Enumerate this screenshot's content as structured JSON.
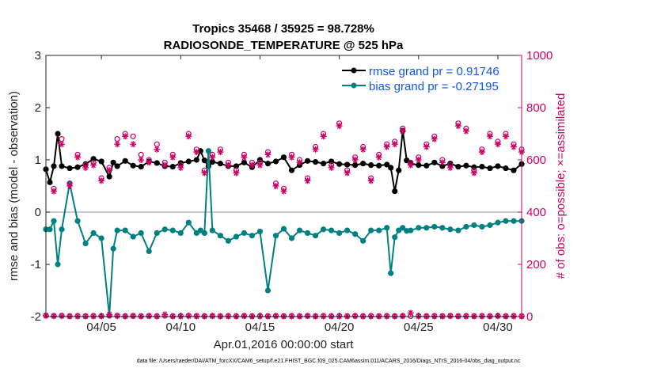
{
  "colors": {
    "rmse": "#000000",
    "bias": "#008080",
    "obs": "#cc0066",
    "legend_text": "#1155ee",
    "zero_line": "#aaaaaa"
  },
  "titles": {
    "line1": "Tropics 35468 / 35925 = 98.728%",
    "line2": "RADIOSONDE_TEMPERATURE @ 525 hPa"
  },
  "footer": "data file: /Users/raeder/DAI/ATM_forcXX/CAM6_setup/f.e21.FHIST_BGC.f09_025.CAM6assim.011/ACARS_2016/Diags_NTrS_2016-04/obs_diag_output.nc",
  "chart_data": {
    "type": "line",
    "title": "Tropics 35468 / 35925 = 98.728% — RADIOSONDE_TEMPERATURE @ 525 hPa",
    "xlabel": "Apr.01,2016 00:00:00 start",
    "ylabel_left": "rmse and bias (model - observation)",
    "ylabel_right": "# of obs: o=possible; ×=assimilated",
    "xlim": [
      0.5,
      30.5
    ],
    "ylim_left": [
      -2,
      3
    ],
    "ylim_right": [
      0,
      1000
    ],
    "xticks": [
      4,
      9,
      14,
      19,
      24,
      29
    ],
    "xticklabels": [
      "04/05",
      "04/10",
      "04/15",
      "04/20",
      "04/25",
      "04/30"
    ],
    "yticks_left": [
      -2,
      -1,
      0,
      1,
      2,
      3
    ],
    "yticks_right": [
      0,
      200,
      400,
      600,
      800,
      1000
    ],
    "legend": [
      {
        "label": "rmse grand pr = 0.91746",
        "series": "rmse"
      },
      {
        "label": "bias grand pr = -0.27195",
        "series": "bias"
      }
    ],
    "series": [
      {
        "name": "rmse",
        "axis": "left",
        "x": [
          0.5,
          0.75,
          1.0,
          1.25,
          1.5,
          2.0,
          2.5,
          3.0,
          3.5,
          4.0,
          4.5,
          4.75,
          5.0,
          5.5,
          6.0,
          6.5,
          7.0,
          7.5,
          8.0,
          8.5,
          9.0,
          9.5,
          10.0,
          10.25,
          10.5,
          10.75,
          11.0,
          11.5,
          12.0,
          12.5,
          13.0,
          13.5,
          14.0,
          14.5,
          15.0,
          15.5,
          16.0,
          16.5,
          17.0,
          17.5,
          18.0,
          18.5,
          19.0,
          19.5,
          20.0,
          20.5,
          21.0,
          21.5,
          22.0,
          22.25,
          22.5,
          22.75,
          23.0,
          23.25,
          23.5,
          24.0,
          24.5,
          25.0,
          25.5,
          26.0,
          26.5,
          27.0,
          27.5,
          28.0,
          28.5,
          29.0,
          29.5,
          30.0,
          30.5
        ],
        "values": [
          0.82,
          0.57,
          0.88,
          1.5,
          0.88,
          0.84,
          0.86,
          0.92,
          1.02,
          0.97,
          0.68,
          0.95,
          0.88,
          0.98,
          0.89,
          0.87,
          0.97,
          0.94,
          0.88,
          0.87,
          0.94,
          0.97,
          1.0,
          1.17,
          0.99,
          0.88,
          0.96,
          0.93,
          0.88,
          0.88,
          0.95,
          0.86,
          1.0,
          0.93,
          0.97,
          1.05,
          0.8,
          0.9,
          0.98,
          0.96,
          0.93,
          0.97,
          0.92,
          0.91,
          0.9,
          0.93,
          0.9,
          0.89,
          0.91,
          0.85,
          0.4,
          0.8,
          1.56,
          0.99,
          0.93,
          0.9,
          0.89,
          0.95,
          0.88,
          0.93,
          0.87,
          0.89,
          0.86,
          0.87,
          0.84,
          0.88,
          0.84,
          0.8,
          0.92
        ]
      },
      {
        "name": "bias",
        "axis": "left",
        "x": [
          0.5,
          0.75,
          1.0,
          1.25,
          1.5,
          2.0,
          2.5,
          3.0,
          3.5,
          4.0,
          4.5,
          4.75,
          5.0,
          5.5,
          6.0,
          6.5,
          7.0,
          7.5,
          8.0,
          8.5,
          9.0,
          9.5,
          10.0,
          10.25,
          10.5,
          10.75,
          11.0,
          11.5,
          12.0,
          12.5,
          13.0,
          13.5,
          14.0,
          14.5,
          15.0,
          15.5,
          16.0,
          16.5,
          17.0,
          17.5,
          18.0,
          18.5,
          19.0,
          19.5,
          20.0,
          20.5,
          21.0,
          21.5,
          22.0,
          22.25,
          22.5,
          22.75,
          23.0,
          23.25,
          23.5,
          24.0,
          24.5,
          25.0,
          25.5,
          26.0,
          26.5,
          27.0,
          27.5,
          28.0,
          28.5,
          29.0,
          29.5,
          30.0,
          30.5
        ],
        "values": [
          -0.33,
          -0.33,
          -0.17,
          -1.0,
          -0.33,
          0.55,
          -0.17,
          -0.6,
          -0.4,
          -0.5,
          -1.98,
          -0.7,
          -0.35,
          -0.35,
          -0.47,
          -0.4,
          -0.75,
          -0.4,
          -0.33,
          -0.35,
          -0.4,
          -0.2,
          -0.4,
          -0.35,
          -0.4,
          1.17,
          -0.35,
          -0.45,
          -0.55,
          -0.47,
          -0.4,
          -0.45,
          -0.37,
          -1.5,
          -0.45,
          -0.32,
          -0.5,
          -0.35,
          -0.4,
          -0.45,
          -0.33,
          -0.35,
          -0.4,
          -0.35,
          -0.42,
          -0.55,
          -0.35,
          -0.35,
          -0.3,
          -1.17,
          -0.48,
          -0.35,
          -0.3,
          -0.36,
          -0.35,
          -0.3,
          -0.3,
          -0.28,
          -0.3,
          -0.33,
          -0.35,
          -0.28,
          -0.25,
          -0.28,
          -0.25,
          -0.2,
          -0.17,
          -0.17,
          -0.17
        ]
      },
      {
        "name": "obs_possible",
        "axis": "right",
        "marker": "circle",
        "x": [
          1.0,
          1.5,
          2.0,
          2.5,
          3.0,
          3.5,
          4.0,
          4.5,
          5.0,
          5.5,
          6.0,
          6.5,
          7.0,
          7.5,
          8.0,
          8.5,
          9.0,
          9.5,
          10.0,
          10.5,
          11.0,
          11.5,
          12.0,
          12.5,
          13.0,
          13.5,
          14.0,
          14.5,
          15.0,
          15.5,
          16.0,
          16.5,
          17.0,
          17.5,
          18.0,
          18.5,
          19.0,
          19.5,
          20.0,
          20.5,
          21.0,
          21.5,
          22.0,
          22.5,
          23.0,
          23.5,
          24.0,
          24.5,
          25.0,
          25.5,
          26.0,
          26.5,
          27.0,
          27.5,
          28.0,
          28.5,
          29.0,
          29.5,
          30.0,
          30.5
        ],
        "values": [
          490,
          680,
          510,
          620,
          580,
          590,
          530,
          570,
          680,
          700,
          690,
          620,
          600,
          660,
          590,
          620,
          580,
          700,
          640,
          560,
          620,
          640,
          590,
          560,
          620,
          590,
          590,
          630,
          510,
          490,
          620,
          600,
          530,
          650,
          700,
          580,
          740,
          560,
          610,
          650,
          530,
          620,
          660,
          670,
          720,
          590,
          610,
          660,
          690,
          600,
          580,
          740,
          720,
          560,
          640,
          700,
          670,
          700,
          660,
          640
        ]
      },
      {
        "name": "obs_assimilated",
        "axis": "right",
        "marker": "asterisk",
        "x": [
          1.0,
          1.5,
          2.0,
          2.5,
          3.0,
          3.5,
          4.0,
          4.5,
          5.0,
          5.5,
          6.0,
          6.5,
          7.0,
          7.5,
          8.0,
          8.5,
          9.0,
          9.5,
          10.0,
          10.5,
          11.0,
          11.5,
          12.0,
          12.5,
          13.0,
          13.5,
          14.0,
          14.5,
          15.0,
          15.5,
          16.0,
          16.5,
          17.0,
          17.5,
          18.0,
          18.5,
          19.0,
          19.5,
          20.0,
          20.5,
          21.0,
          21.5,
          22.0,
          22.5,
          23.0,
          23.5,
          24.0,
          24.5,
          25.0,
          25.5,
          26.0,
          26.5,
          27.0,
          27.5,
          28.0,
          28.5,
          29.0,
          29.5,
          30.0,
          30.5
        ],
        "values": [
          480,
          660,
          500,
          610,
          570,
          580,
          520,
          560,
          660,
          690,
          660,
          600,
          590,
          640,
          580,
          610,
          570,
          690,
          630,
          550,
          610,
          630,
          580,
          550,
          610,
          580,
          580,
          620,
          500,
          480,
          610,
          590,
          520,
          640,
          690,
          570,
          730,
          550,
          600,
          640,
          520,
          610,
          650,
          660,
          710,
          580,
          600,
          650,
          680,
          590,
          570,
          730,
          710,
          550,
          630,
          690,
          660,
          690,
          650,
          630
        ]
      },
      {
        "name": "obs_possible_bottom",
        "axis": "right",
        "marker": "circle",
        "x": [
          0.5,
          1.0,
          1.5,
          2.0,
          2.5,
          3.0,
          3.5,
          4.0,
          4.5,
          5.0,
          5.5,
          6.0,
          6.5,
          7.0,
          7.5,
          8.0,
          8.5,
          9.0,
          9.5,
          10.0,
          10.5,
          11.0,
          11.5,
          12.0,
          12.5,
          13.0,
          13.5,
          14.0,
          14.5,
          15.0,
          15.5,
          16.0,
          16.5,
          17.0,
          17.5,
          18.0,
          18.5,
          19.0,
          19.5,
          20.0,
          20.5,
          21.0,
          21.5,
          22.0,
          22.5,
          23.0,
          23.5,
          24.0,
          24.5,
          25.0,
          25.5,
          26.0,
          26.5,
          27.0,
          27.5,
          28.0,
          28.5,
          29.0,
          29.5,
          30.0,
          30.5
        ],
        "values": [
          5,
          3,
          4,
          2,
          3,
          2,
          3,
          2,
          3,
          4,
          2,
          3,
          2,
          3,
          2,
          3,
          2,
          3,
          4,
          3,
          2,
          3,
          2,
          3,
          2,
          3,
          2,
          3,
          2,
          3,
          2,
          3,
          2,
          3,
          2,
          3,
          2,
          3,
          2,
          3,
          2,
          3,
          2,
          3,
          2,
          3,
          2,
          3,
          2,
          3,
          2,
          3,
          2,
          3,
          2,
          3,
          2,
          3,
          2,
          3,
          2
        ]
      },
      {
        "name": "obs_assimilated_bottom",
        "axis": "right",
        "marker": "asterisk",
        "x": [
          0.5,
          1.0,
          1.5,
          2.0,
          2.5,
          3.0,
          3.5,
          4.0,
          4.5,
          5.0,
          5.5,
          6.0,
          6.5,
          7.0,
          7.5,
          8.0,
          8.5,
          9.0,
          9.5,
          10.0,
          10.5,
          11.0,
          11.5,
          12.0,
          12.5,
          13.0,
          13.5,
          14.0,
          14.5,
          15.0,
          15.5,
          16.0,
          16.5,
          17.0,
          17.5,
          18.0,
          18.5,
          19.0,
          19.5,
          20.0,
          20.5,
          21.0,
          21.5,
          22.0,
          22.5,
          23.0,
          23.5,
          24.0,
          24.5,
          25.0,
          25.5,
          26.0,
          26.5,
          27.0,
          27.5,
          28.0,
          28.5,
          29.0,
          29.5,
          30.0,
          30.5
        ],
        "values": [
          3,
          2,
          2,
          1,
          1,
          1,
          1,
          2,
          8,
          2,
          1,
          2,
          1,
          2,
          1,
          8,
          1,
          1,
          2,
          1,
          1,
          2,
          1,
          1,
          1,
          2,
          1,
          1,
          1,
          2,
          1,
          1,
          1,
          2,
          1,
          1,
          1,
          1,
          1,
          2,
          1,
          1,
          1,
          1,
          1,
          2,
          14,
          1,
          1,
          1,
          1,
          2,
          1,
          1,
          1,
          1,
          1,
          2,
          1,
          1,
          1
        ]
      }
    ]
  }
}
